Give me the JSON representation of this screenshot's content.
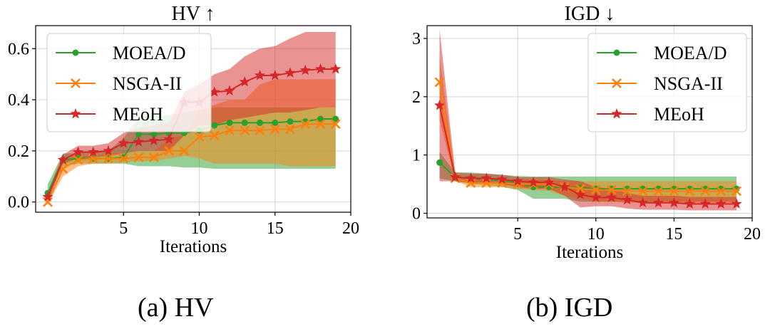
{
  "chart_data": [
    {
      "type": "line",
      "title": "HV ↑",
      "xlabel": "Iterations",
      "ylabel": "",
      "xlim": [
        -0.8,
        20
      ],
      "ylim": [
        -0.04,
        0.69
      ],
      "xticks": [
        5,
        10,
        15,
        20
      ],
      "yticks": [
        0.0,
        0.2,
        0.4,
        0.6
      ],
      "ytick_labels": [
        "0.0",
        "0.2",
        "0.4",
        "0.6"
      ],
      "grid": true,
      "legend_position": "top-left",
      "x": [
        0,
        1,
        2,
        3,
        4,
        5,
        6,
        7,
        8,
        9,
        10,
        11,
        12,
        13,
        14,
        15,
        16,
        17,
        18,
        19
      ],
      "series": [
        {
          "name": "MOEA/D",
          "color": "#2ca02c",
          "marker": "circle",
          "values": [
            0.035,
            0.165,
            0.17,
            0.17,
            0.17,
            0.175,
            0.265,
            0.265,
            0.27,
            0.27,
            0.28,
            0.3,
            0.31,
            0.31,
            0.31,
            0.31,
            0.315,
            0.315,
            0.325,
            0.325
          ],
          "lower": [
            0.02,
            0.14,
            0.15,
            0.15,
            0.15,
            0.15,
            0.14,
            0.14,
            0.14,
            0.135,
            0.135,
            0.13,
            0.13,
            0.13,
            0.13,
            0.13,
            0.13,
            0.13,
            0.13,
            0.13
          ],
          "upper": [
            0.07,
            0.19,
            0.19,
            0.2,
            0.2,
            0.25,
            0.33,
            0.34,
            0.34,
            0.35,
            0.36,
            0.37,
            0.37,
            0.37,
            0.37,
            0.37,
            0.37,
            0.37,
            0.37,
            0.37
          ]
        },
        {
          "name": "NSGA-II",
          "color": "#ff7f0e",
          "marker": "x",
          "values": [
            0.0,
            0.13,
            0.165,
            0.17,
            0.17,
            0.17,
            0.175,
            0.175,
            0.2,
            0.2,
            0.255,
            0.26,
            0.28,
            0.28,
            0.28,
            0.285,
            0.285,
            0.305,
            0.305,
            0.305
          ],
          "lower": [
            -0.01,
            0.1,
            0.14,
            0.15,
            0.15,
            0.155,
            0.16,
            0.16,
            0.17,
            0.18,
            0.17,
            0.15,
            0.15,
            0.15,
            0.15,
            0.15,
            0.14,
            0.14,
            0.14,
            0.14
          ],
          "upper": [
            0.02,
            0.16,
            0.18,
            0.18,
            0.19,
            0.19,
            0.2,
            0.2,
            0.25,
            0.26,
            0.36,
            0.38,
            0.4,
            0.4,
            0.46,
            0.48,
            0.48,
            0.48,
            0.48,
            0.48
          ]
        },
        {
          "name": "MEoH",
          "color": "#d62728",
          "marker": "star",
          "values": [
            0.02,
            0.165,
            0.195,
            0.195,
            0.2,
            0.23,
            0.235,
            0.24,
            0.245,
            0.39,
            0.39,
            0.43,
            0.435,
            0.47,
            0.495,
            0.495,
            0.505,
            0.515,
            0.52,
            0.52
          ],
          "lower": [
            0.0,
            0.15,
            0.17,
            0.175,
            0.18,
            0.19,
            0.2,
            0.2,
            0.2,
            0.26,
            0.3,
            0.3,
            0.32,
            0.33,
            0.34,
            0.35,
            0.35,
            0.36,
            0.37,
            0.37
          ],
          "upper": [
            0.04,
            0.185,
            0.22,
            0.22,
            0.23,
            0.27,
            0.29,
            0.3,
            0.31,
            0.43,
            0.46,
            0.5,
            0.52,
            0.57,
            0.6,
            0.61,
            0.64,
            0.665,
            0.665,
            0.665
          ]
        }
      ]
    },
    {
      "type": "line",
      "title": "IGD ↓",
      "xlabel": "Iterations",
      "ylabel": "",
      "xlim": [
        -0.8,
        20
      ],
      "ylim": [
        -0.08,
        3.22
      ],
      "xticks": [
        5,
        10,
        15,
        20
      ],
      "yticks": [
        0,
        1,
        2,
        3
      ],
      "ytick_labels": [
        "0",
        "1",
        "2",
        "3"
      ],
      "grid": true,
      "legend_position": "top-right",
      "x": [
        0,
        1,
        2,
        3,
        4,
        5,
        6,
        7,
        8,
        9,
        10,
        11,
        12,
        13,
        14,
        15,
        16,
        17,
        18,
        19
      ],
      "series": [
        {
          "name": "MOEA/D",
          "color": "#2ca02c",
          "marker": "circle",
          "values": [
            0.87,
            0.62,
            0.6,
            0.58,
            0.56,
            0.52,
            0.45,
            0.45,
            0.45,
            0.44,
            0.42,
            0.42,
            0.42,
            0.42,
            0.42,
            0.42,
            0.42,
            0.42,
            0.42,
            0.42
          ],
          "lower": [
            0.6,
            0.55,
            0.5,
            0.48,
            0.45,
            0.4,
            0.25,
            0.25,
            0.25,
            0.2,
            0.2,
            0.2,
            0.2,
            0.2,
            0.2,
            0.2,
            0.2,
            0.2,
            0.2,
            0.2
          ],
          "upper": [
            1.05,
            0.7,
            0.7,
            0.68,
            0.66,
            0.64,
            0.63,
            0.63,
            0.63,
            0.63,
            0.63,
            0.63,
            0.63,
            0.63,
            0.63,
            0.63,
            0.63,
            0.63,
            0.63,
            0.63
          ]
        },
        {
          "name": "NSGA-II",
          "color": "#ff7f0e",
          "marker": "x",
          "values": [
            2.25,
            0.6,
            0.52,
            0.52,
            0.52,
            0.5,
            0.5,
            0.5,
            0.45,
            0.42,
            0.4,
            0.4,
            0.38,
            0.38,
            0.38,
            0.38,
            0.38,
            0.38,
            0.38,
            0.38
          ],
          "lower": [
            1.6,
            0.55,
            0.45,
            0.45,
            0.45,
            0.42,
            0.4,
            0.38,
            0.3,
            0.25,
            0.2,
            0.2,
            0.18,
            0.18,
            0.18,
            0.18,
            0.18,
            0.18,
            0.18,
            0.18
          ],
          "upper": [
            2.7,
            0.65,
            0.58,
            0.58,
            0.58,
            0.58,
            0.58,
            0.56,
            0.55,
            0.55,
            0.55,
            0.55,
            0.55,
            0.55,
            0.55,
            0.55,
            0.55,
            0.55,
            0.55,
            0.55
          ]
        },
        {
          "name": "MEoH",
          "color": "#d62728",
          "marker": "star",
          "values": [
            1.85,
            0.62,
            0.6,
            0.6,
            0.58,
            0.55,
            0.53,
            0.53,
            0.45,
            0.32,
            0.27,
            0.27,
            0.23,
            0.18,
            0.18,
            0.18,
            0.16,
            0.16,
            0.16,
            0.16
          ],
          "lower": [
            0.55,
            0.55,
            0.52,
            0.52,
            0.5,
            0.45,
            0.42,
            0.42,
            0.3,
            0.1,
            0.12,
            0.12,
            0.08,
            0.06,
            0.06,
            0.06,
            0.05,
            0.05,
            0.05,
            0.05
          ],
          "upper": [
            3.15,
            0.7,
            0.68,
            0.68,
            0.66,
            0.62,
            0.62,
            0.62,
            0.58,
            0.55,
            0.45,
            0.42,
            0.35,
            0.3,
            0.3,
            0.3,
            0.28,
            0.28,
            0.28,
            0.28
          ]
        }
      ]
    }
  ],
  "captions": {
    "a": "(a) HV",
    "b": "(b) IGD"
  }
}
